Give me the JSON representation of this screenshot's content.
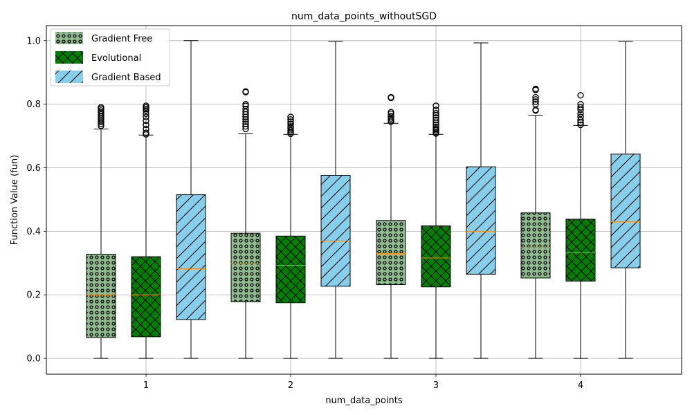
{
  "chart_data": {
    "type": "box",
    "title": "num_data_points_withoutSGD",
    "xlabel": "num_data_points",
    "ylabel": "Function Value (fun)",
    "categories": [
      "1",
      "2",
      "3",
      "4"
    ],
    "y_ticks": [
      "0.0",
      "0.2",
      "0.4",
      "0.6",
      "0.8",
      "1.0"
    ],
    "ylim": [
      -0.05,
      1.05
    ],
    "grid": true,
    "legend_position": "top-left",
    "series": [
      {
        "name": "Gradient Free",
        "color": "#8fbc8f",
        "hatch": "circles",
        "boxes": [
          {
            "min": 0.0,
            "q1": 0.065,
            "median": 0.2,
            "q3": 0.328,
            "max": 0.722,
            "outliers": [
              0.732,
              0.738,
              0.744,
              0.75,
              0.756,
              0.762,
              0.768,
              0.774,
              0.78,
              0.786,
              0.79
            ]
          },
          {
            "min": 0.0,
            "q1": 0.178,
            "median": 0.298,
            "q3": 0.394,
            "max": 0.707,
            "outliers": [
              0.722,
              0.73,
              0.738,
              0.745,
              0.752,
              0.76,
              0.768,
              0.776,
              0.785,
              0.795,
              0.8,
              0.838,
              0.84
            ]
          },
          {
            "min": 0.0,
            "q1": 0.232,
            "median": 0.33,
            "q3": 0.434,
            "max": 0.74,
            "outliers": [
              0.745,
              0.75,
              0.755,
              0.762,
              0.77,
              0.775,
              0.82,
              0.822
            ]
          },
          {
            "min": 0.0,
            "q1": 0.253,
            "median": 0.35,
            "q3": 0.458,
            "max": 0.765,
            "outliers": [
              0.78,
              0.782,
              0.8,
              0.808,
              0.815,
              0.822,
              0.845,
              0.848
            ]
          }
        ]
      },
      {
        "name": "Evolutional",
        "color": "#008000",
        "hatch": "crosshatch",
        "boxes": [
          {
            "min": 0.0,
            "q1": 0.068,
            "median": 0.2,
            "q3": 0.32,
            "max": 0.703,
            "outliers": [
              0.705,
              0.71,
              0.722,
              0.735,
              0.748,
              0.76,
              0.77,
              0.78,
              0.785,
              0.79,
              0.795
            ]
          },
          {
            "min": 0.0,
            "q1": 0.175,
            "median": 0.293,
            "q3": 0.385,
            "max": 0.705,
            "outliers": [
              0.707,
              0.712,
              0.718,
              0.725,
              0.73,
              0.738,
              0.745,
              0.752,
              0.76
            ]
          },
          {
            "min": 0.0,
            "q1": 0.225,
            "median": 0.316,
            "q3": 0.417,
            "max": 0.705,
            "outliers": [
              0.708,
              0.712,
              0.718,
              0.722,
              0.728,
              0.735,
              0.742,
              0.75,
              0.758,
              0.765,
              0.772,
              0.782,
              0.795
            ]
          },
          {
            "min": 0.0,
            "q1": 0.243,
            "median": 0.332,
            "q3": 0.438,
            "max": 0.733,
            "outliers": [
              0.735,
              0.742,
              0.75,
              0.76,
              0.77,
              0.782,
              0.79,
              0.8,
              0.828
            ]
          }
        ]
      },
      {
        "name": "Gradient Based",
        "color": "#87ceeb",
        "hatch": "diagonal",
        "boxes": [
          {
            "min": 0.0,
            "q1": 0.122,
            "median": 0.282,
            "q3": 0.515,
            "max": 1.0,
            "outliers": []
          },
          {
            "min": 0.0,
            "q1": 0.227,
            "median": 0.37,
            "q3": 0.576,
            "max": 0.998,
            "outliers": []
          },
          {
            "min": 0.0,
            "q1": 0.265,
            "median": 0.4,
            "q3": 0.603,
            "max": 0.993,
            "outliers": []
          },
          {
            "min": 0.0,
            "q1": 0.285,
            "median": 0.43,
            "q3": 0.643,
            "max": 0.998,
            "outliers": []
          }
        ]
      }
    ]
  }
}
